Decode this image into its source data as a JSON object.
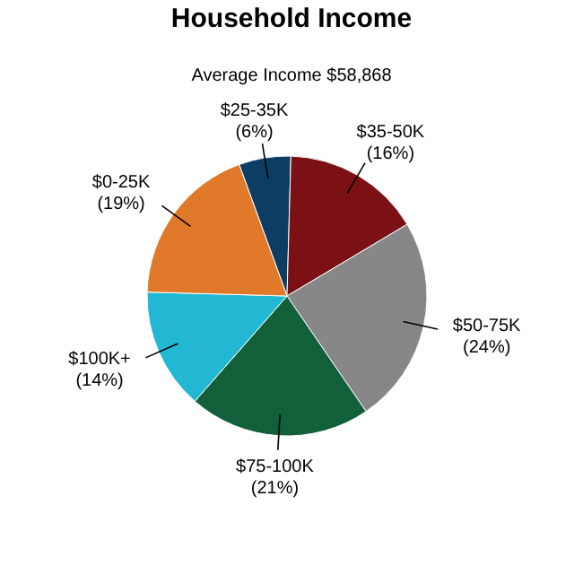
{
  "chart_data": {
    "type": "pie",
    "title": "Household Income",
    "subtitle": "Average Income  $58,868",
    "categories": [
      "$25-35K",
      "$35-50K",
      "$50-75K",
      "$75-100K",
      "$100K+",
      "$0-25K"
    ],
    "values": [
      6,
      16,
      24,
      21,
      14,
      19
    ],
    "value_labels": [
      "(6%)",
      "(16%)",
      "(24%)",
      "(21%)",
      "(14%)",
      "(19%)"
    ],
    "colors": [
      "#0d3d63",
      "#7b1114",
      "#878787",
      "#12603a",
      "#22b8d4",
      "#e07a2a"
    ],
    "legend": false
  }
}
